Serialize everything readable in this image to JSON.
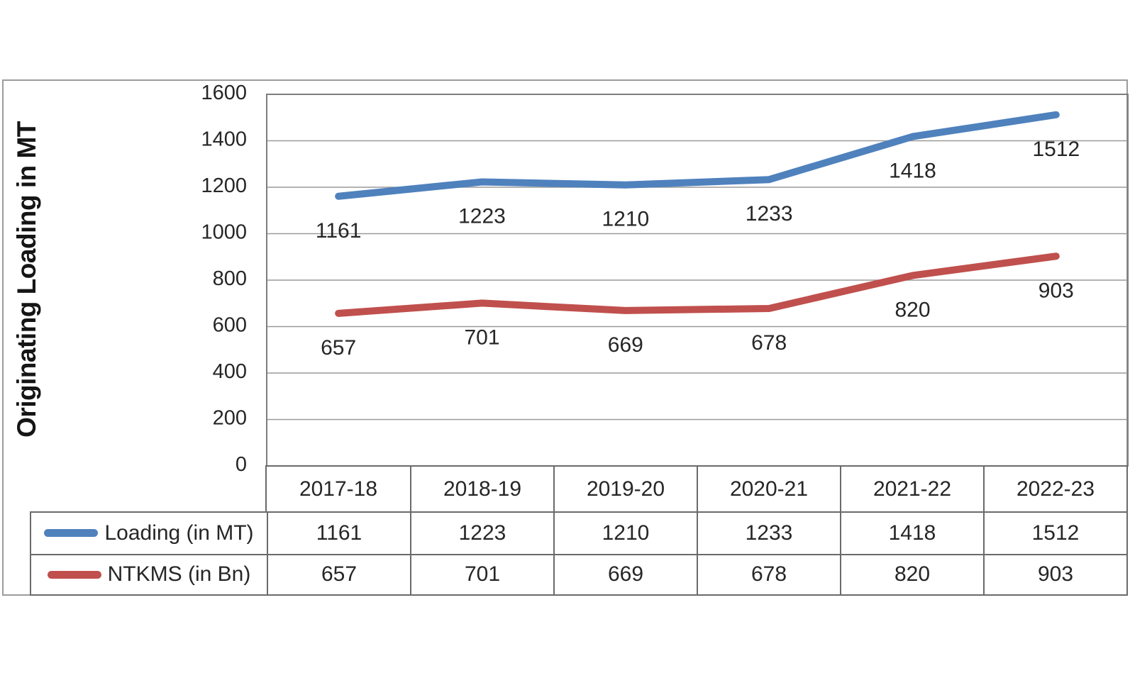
{
  "chart_data": {
    "type": "line",
    "title": "",
    "xlabel": "",
    "ylabel": "Originating Loading in MT",
    "categories": [
      "2017-18",
      "2018-19",
      "2019-20",
      "2020-21",
      "2021-22",
      "2022-23"
    ],
    "series": [
      {
        "name": "Loading (in MT)",
        "color": "#4F81BD",
        "values": [
          1161,
          1223,
          1210,
          1233,
          1418,
          1512
        ]
      },
      {
        "name": "NTKMS (in Bn)",
        "color": "#C0504D",
        "values": [
          657,
          701,
          669,
          678,
          820,
          903
        ]
      }
    ],
    "ylim": [
      0,
      1600
    ],
    "ytick_step": 200,
    "grid": "horizontal-only",
    "legend_position": "table-left",
    "data_labels_position": "below-points",
    "colors": {
      "axis_border": "#7d7d7d",
      "gridline": "#9a9a9a",
      "table_border": "#6a6a6a",
      "text": "#262626"
    }
  }
}
